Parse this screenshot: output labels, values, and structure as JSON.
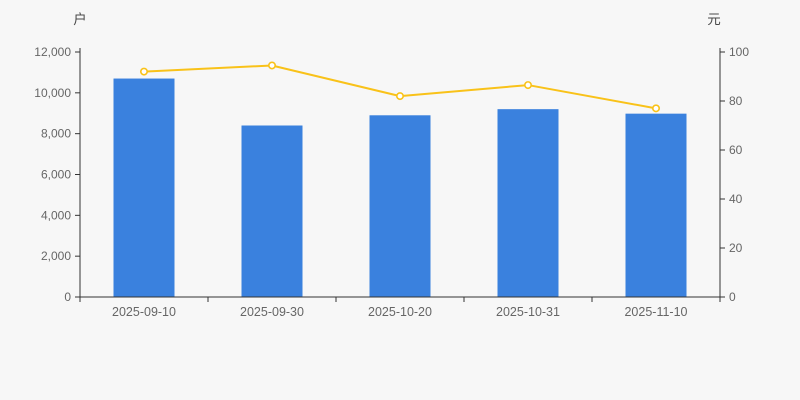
{
  "chart_data": {
    "type": "combo",
    "background": "#f7f7f7",
    "categories": [
      "2025-09-10",
      "2025-09-30",
      "2025-10-20",
      "2025-10-31",
      "2025-11-10"
    ],
    "bar_series": {
      "axis": "left",
      "unit": "户",
      "color": "#3a81de",
      "values": [
        10700,
        8400,
        8900,
        9200,
        8980
      ]
    },
    "line_series": {
      "axis": "right",
      "unit": "元",
      "color": "#f9c219",
      "marker": "hollow-circle",
      "values": [
        92,
        94.5,
        82,
        86.5,
        77
      ]
    },
    "y_axis_left": {
      "name": "户",
      "min": 0,
      "max": 12000,
      "interval": 2000,
      "tick_labels": [
        "0",
        "2,000",
        "4,000",
        "6,000",
        "8,000",
        "10,000",
        "12,000"
      ]
    },
    "y_axis_right": {
      "name": "元",
      "min": 0,
      "max": 100,
      "interval": 20,
      "tick_labels": [
        "0",
        "20",
        "40",
        "60",
        "80",
        "100"
      ]
    },
    "x_axis": {
      "tick_position": "between-categories"
    },
    "grid_lines": false,
    "legend": false,
    "title": "",
    "style": {
      "axis_line_color": "#333333",
      "tick_label_color": "#666666",
      "axis_name_color": "#4a4a4a"
    }
  }
}
